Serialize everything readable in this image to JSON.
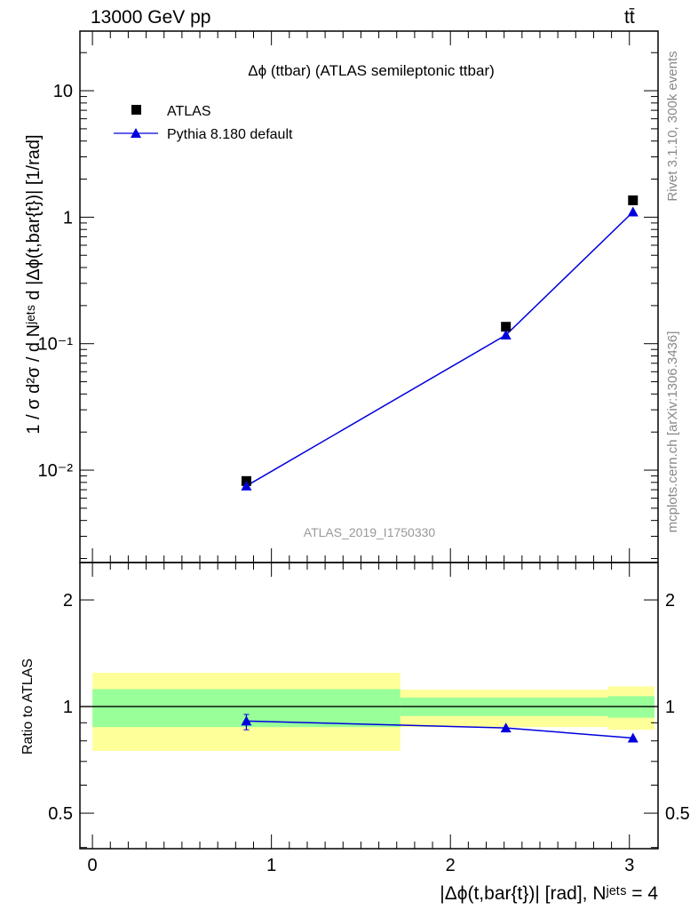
{
  "header": {
    "left": "13000 GeV pp",
    "right": "tt̄"
  },
  "side_labels": {
    "top": "Rivet 3.1.10,  300k events",
    "bottom": "mcplots.cern.ch [arXiv:1306.3436]"
  },
  "chart_data": [
    {
      "type": "scatter",
      "title": "Δϕ (ttbar) (ATLAS semileptonic ttbar)",
      "watermark": "ATLAS_2019_I1750330",
      "ylabel": "1 / σ d²σ / d Nʲᵉᵗˢ d |Δϕ(t,bar{t})| [1/rad]",
      "yscale": "log",
      "ylim": [
        0.00186,
        29.6
      ],
      "xlim": [
        -0.07,
        3.16
      ],
      "ytick_labels": [
        {
          "value": 10,
          "label": "10"
        },
        {
          "value": 1,
          "label": "1"
        },
        {
          "value": 0.1,
          "label": "10⁻¹"
        },
        {
          "value": 0.01,
          "label": "10⁻²"
        }
      ],
      "legend": {
        "placement": "top-left",
        "entries": [
          "ATLAS",
          "Pythia 8.180 default"
        ]
      },
      "series": [
        {
          "name": "ATLAS",
          "marker": "square",
          "color": "#000000",
          "x": [
            0.86,
            2.31,
            3.02
          ],
          "y": [
            0.0082,
            0.136,
            1.36
          ]
        },
        {
          "name": "Pythia 8.180 default",
          "marker": "triangle",
          "color": "#0000dd",
          "x": [
            0.86,
            2.31,
            3.02
          ],
          "y": [
            0.0075,
            0.117,
            1.1
          ]
        }
      ]
    },
    {
      "type": "line",
      "ylabel": "Ratio to ATLAS",
      "xlabel": "|Δϕ(t,bar{t})| [rad], Nʲᵉᵗˢ = 4",
      "yscale": "log",
      "ylim": [
        0.397,
        2.55
      ],
      "xlim": [
        -0.07,
        3.16
      ],
      "xtick_labels": [
        {
          "value": 0,
          "label": "0"
        },
        {
          "value": 1,
          "label": "1"
        },
        {
          "value": 2,
          "label": "2"
        },
        {
          "value": 3,
          "label": "3"
        }
      ],
      "ytick_labels": [
        {
          "value": 2,
          "label": "2"
        },
        {
          "value": 1,
          "label": "1"
        },
        {
          "value": 0.5,
          "label": "0.5"
        }
      ],
      "bands": [
        {
          "x": [
            0,
            1.72
          ],
          "yellow": [
            0.75,
            1.245
          ],
          "green": [
            0.875,
            1.12
          ]
        },
        {
          "x": [
            1.72,
            2.88
          ],
          "yellow": [
            0.875,
            1.116
          ],
          "green": [
            0.94,
            1.06
          ]
        },
        {
          "x": [
            2.88,
            3.14
          ],
          "yellow": [
            0.86,
            1.14
          ],
          "green": [
            0.93,
            1.07
          ]
        }
      ],
      "band_colors": {
        "yellow": "#ffff99",
        "green": "#99ff99"
      },
      "series": [
        {
          "name": "Pythia 8.180 default",
          "color": "#0000dd",
          "x": [
            0.86,
            2.31,
            3.02
          ],
          "y": [
            0.91,
            0.87,
            0.815
          ],
          "yerr_low": [
            0.86,
            null,
            null
          ],
          "yerr_high": [
            0.95,
            null,
            null
          ]
        }
      ]
    }
  ]
}
